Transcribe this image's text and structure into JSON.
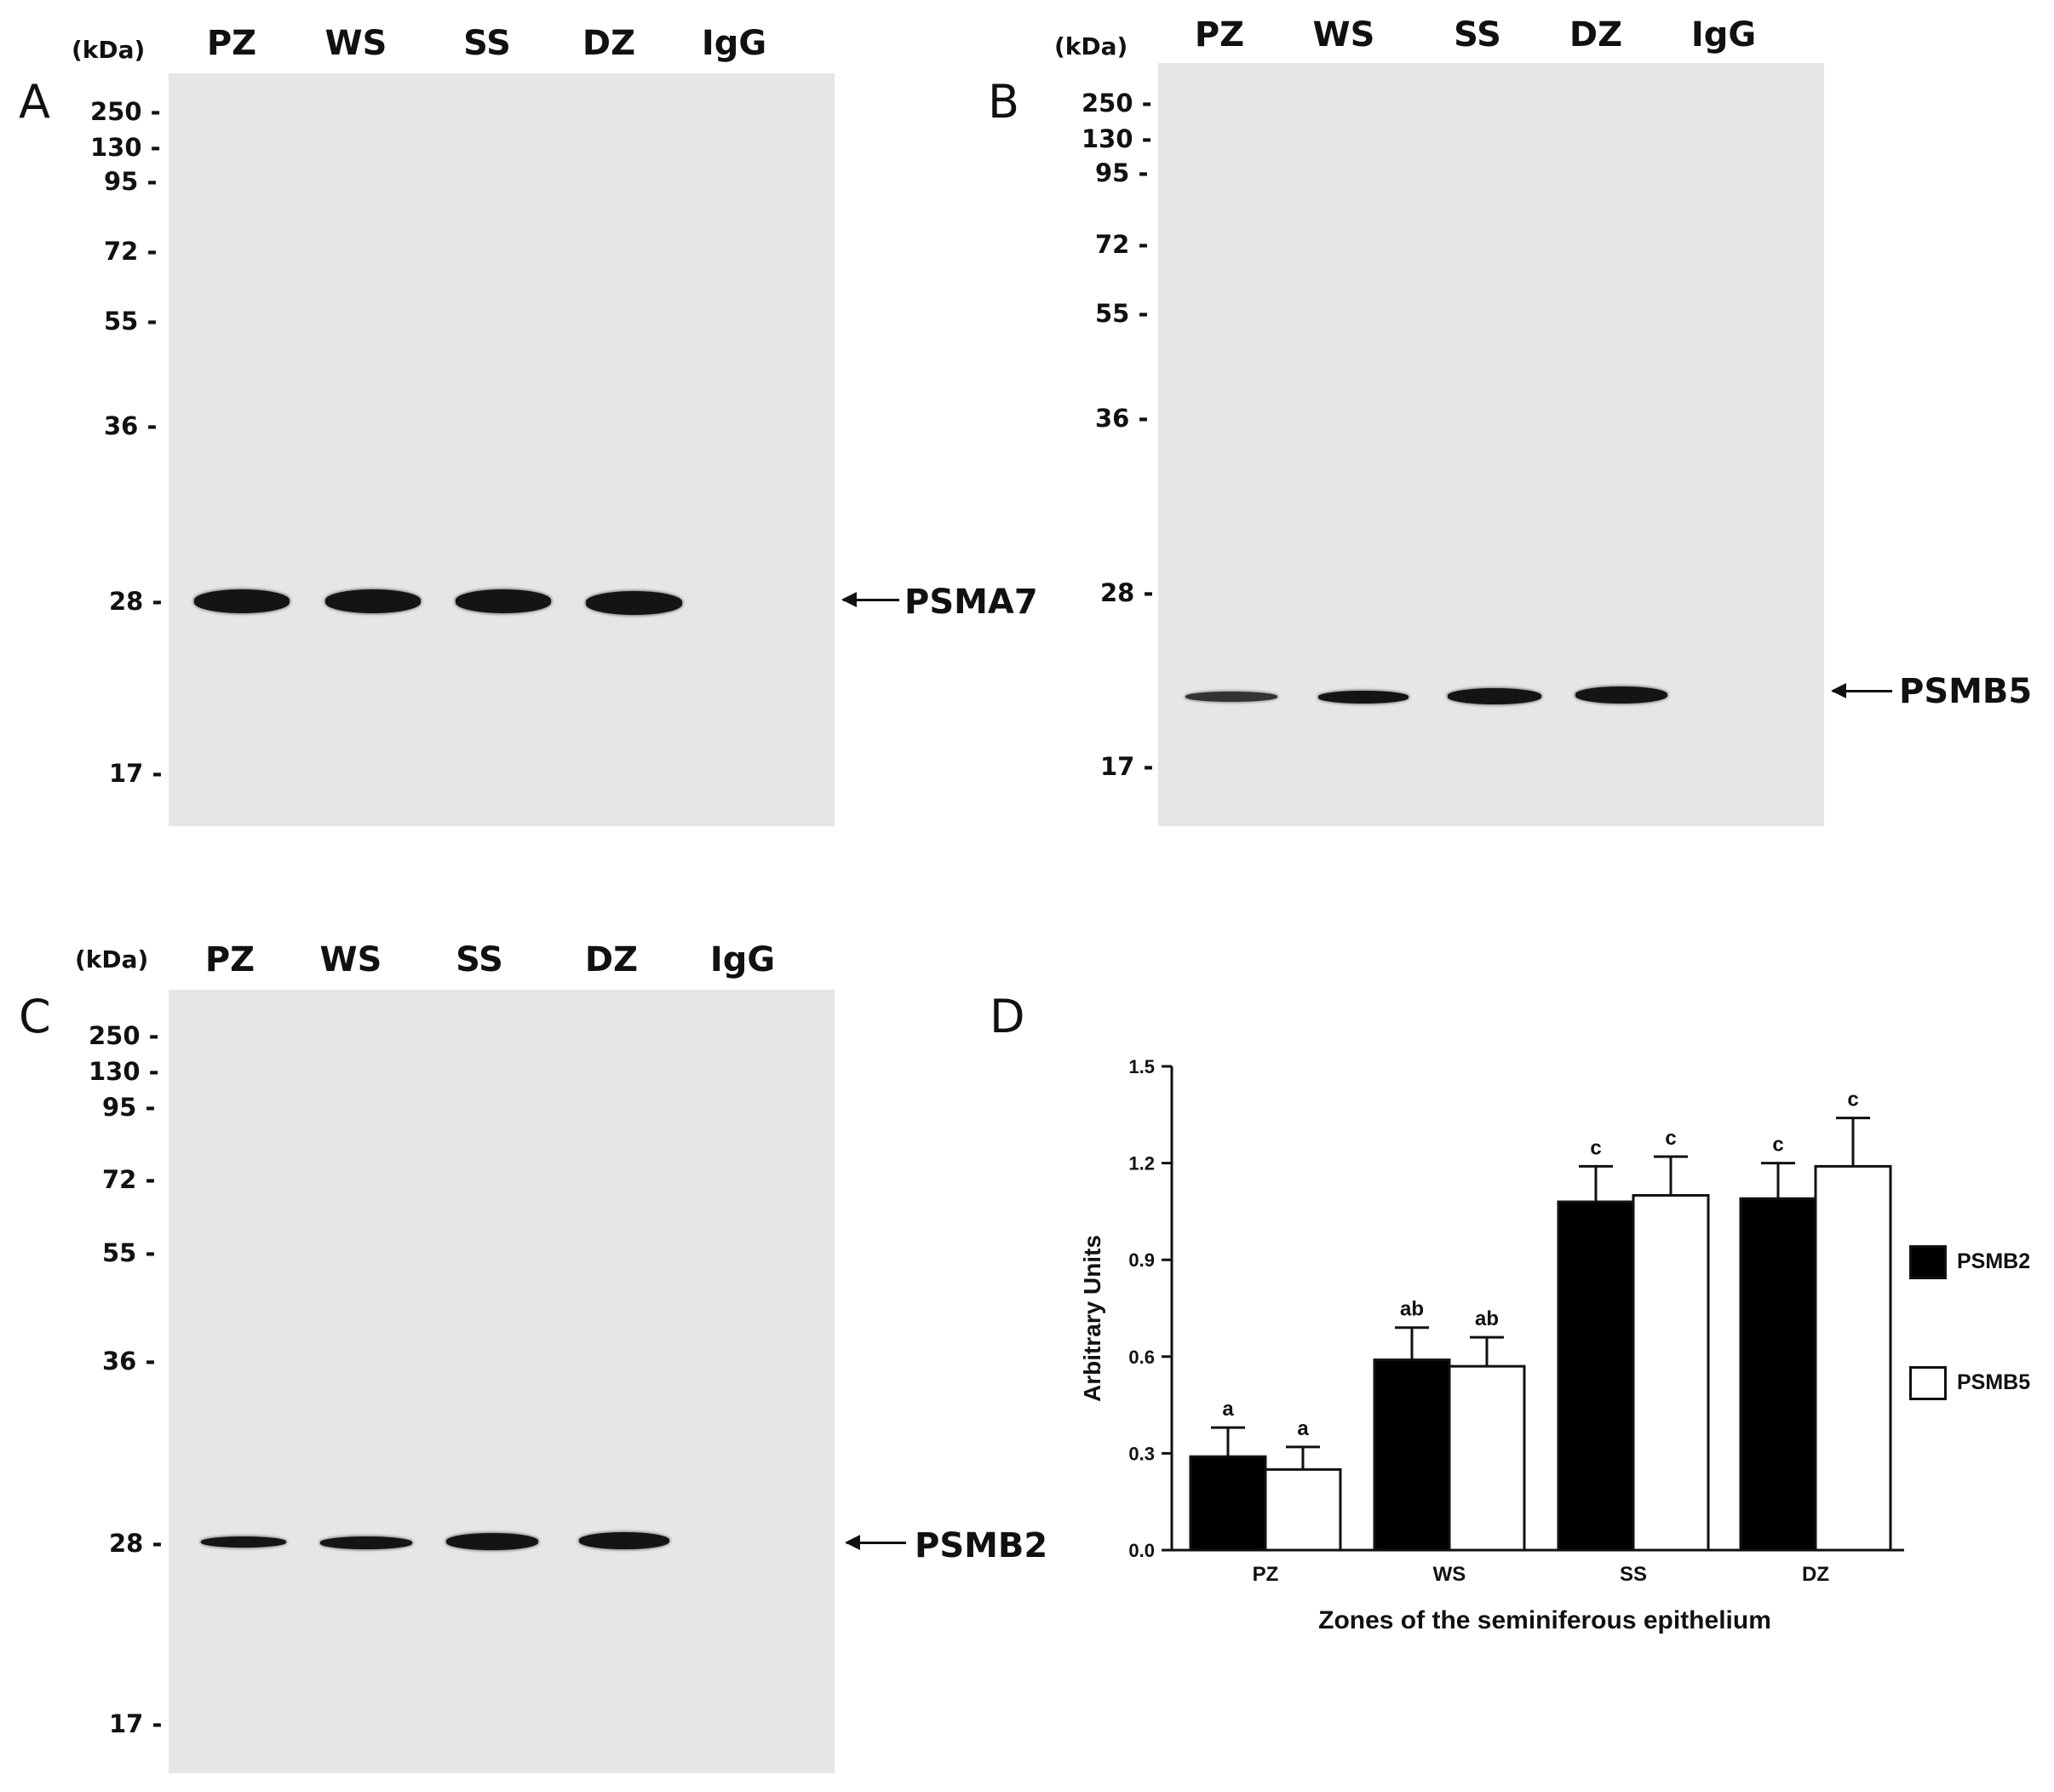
{
  "panels": [
    {
      "letter": "A",
      "kda": "(kDa)",
      "lanes": [
        "PZ",
        "WS",
        "SS",
        "DZ",
        "IgG"
      ],
      "markers": [
        "250 -",
        "130 -",
        "95 -",
        "72 -",
        "55 -",
        "36 -",
        "28 -",
        "17 -"
      ],
      "protein": "PSMA7"
    },
    {
      "letter": "B",
      "kda": "(kDa)",
      "lanes": [
        "PZ",
        "WS",
        "SS",
        "DZ",
        "IgG"
      ],
      "markers": [
        "250 -",
        "130 -",
        "95 -",
        "72 -",
        "55 -",
        "36 -",
        "28 -",
        "17 -"
      ],
      "protein": "PSMB5"
    },
    {
      "letter": "C",
      "kda": "(kDa)",
      "lanes": [
        "PZ",
        "WS",
        "SS",
        "DZ",
        "IgG"
      ],
      "markers": [
        "250 -",
        "130 -",
        "95 -",
        "72 -",
        "55 -",
        "36 -",
        "28 -",
        "17 -"
      ],
      "protein": "PSMB2"
    }
  ],
  "chart_panel_letter": "D",
  "chart_data": {
    "type": "bar",
    "categories": [
      "PZ",
      "WS",
      "SS",
      "DZ"
    ],
    "series": [
      {
        "name": "PSMB2",
        "values": [
          0.29,
          0.59,
          1.08,
          1.09
        ],
        "errors": [
          0.09,
          0.1,
          0.11,
          0.11
        ],
        "letters": [
          "a",
          "ab",
          "c",
          "c"
        ],
        "fill": "#000000"
      },
      {
        "name": "PSMB5",
        "values": [
          0.25,
          0.57,
          1.1,
          1.19
        ],
        "errors": [
          0.07,
          0.09,
          0.12,
          0.15
        ],
        "letters": [
          "a",
          "ab",
          "c",
          "c"
        ],
        "fill": "#ffffff"
      }
    ],
    "xlabel": "Zones of the seminiferous epithelium",
    "ylabel": "Arbitrary Units",
    "ylim": [
      0,
      1.5
    ],
    "yticks": [
      "0.0",
      "0.3",
      "0.6",
      "0.9",
      "1.2",
      "1.5"
    ],
    "ytick_values": [
      0,
      0.3,
      0.6,
      0.9,
      1.2,
      1.5
    ],
    "legend_placement": "right",
    "grid": false
  }
}
